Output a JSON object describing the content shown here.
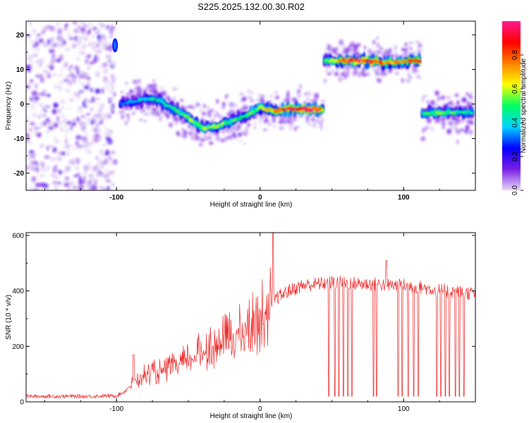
{
  "title": "S225.2025.132.00.30.R02",
  "chart_data": [
    {
      "type": "heatmap",
      "xlabel": "Height of straight line (km)",
      "ylabel": "Frequency (Hz)",
      "xlim": [
        -163,
        150
      ],
      "ylim": [
        -25,
        24
      ],
      "x_ticks": [
        -100,
        0,
        100
      ],
      "y_ticks": [
        20,
        10,
        0,
        -10,
        -20
      ],
      "colorbar": {
        "label": "Normalized spectral amplitude",
        "range": [
          0,
          1
        ],
        "ticks": [
          0,
          0.2,
          0.4,
          0.6,
          0.8
        ],
        "tick_labels": [
          "0.0",
          "0.2",
          "0.4",
          "0.6",
          "0.8"
        ],
        "colormap": [
          "#e6d9f5",
          "#7a1ee6",
          "#0000ff",
          "#00d4ff",
          "#00ff60",
          "#ffff00",
          "#ff8000",
          "#ff0000",
          "#ff1a90"
        ]
      },
      "noise_region": {
        "x": [
          -163,
          -101
        ],
        "frequency": [
          -25,
          24
        ]
      },
      "ridges": [
        {
          "x": [
            -97,
            -80,
            -70,
            -60,
            -50,
            -40,
            -30,
            -20,
            -10,
            0,
            10,
            20,
            30,
            40,
            44
          ],
          "frequency": [
            0,
            1.5,
            1.0,
            -1.5,
            -4,
            -7,
            -6.5,
            -5,
            -3.5,
            -1,
            -2,
            -1.5,
            -1.5,
            -1.5,
            -1.5
          ],
          "amplitude": [
            0.3,
            0.4,
            0.45,
            0.45,
            0.55,
            0.55,
            0.6,
            0.5,
            0.45,
            0.6,
            0.75,
            0.9,
            0.95,
            0.9,
            0.7
          ]
        },
        {
          "x": [
            45,
            55,
            65,
            75,
            85,
            95,
            105,
            112
          ],
          "frequency": [
            12.5,
            12.5,
            12.7,
            12.5,
            12,
            12,
            12.5,
            12.7
          ],
          "amplitude": [
            0.45,
            0.7,
            0.9,
            0.85,
            0.8,
            0.7,
            0.8,
            0.9
          ]
        },
        {
          "x": [
            113,
            120,
            130,
            140,
            148
          ],
          "frequency": [
            -2.5,
            -2.5,
            -2.5,
            -2.5,
            -2.5
          ],
          "amplitude": [
            0.45,
            0.5,
            0.5,
            0.45,
            0.45
          ]
        }
      ],
      "spikes": [
        {
          "x": -101,
          "frequency": 17
        }
      ]
    },
    {
      "type": "line",
      "xlabel": "Height of straight line (km)",
      "ylabel": "SNR (10 * v/v)",
      "xlim": [
        -163,
        150
      ],
      "ylim": [
        0,
        610
      ],
      "x_ticks": [
        -100,
        0,
        100
      ],
      "y_ticks": [
        0,
        200,
        400,
        600
      ],
      "color": "#ee2020",
      "series": [
        {
          "x": [
            -163,
            -140,
            -120,
            -100,
            -95,
            -90,
            -85,
            -80,
            -70,
            -60,
            -50,
            -40,
            -30,
            -20,
            -10,
            0,
            5,
            10,
            15,
            20,
            25,
            30,
            40,
            50,
            60,
            70,
            80,
            90,
            100,
            110,
            120,
            130,
            140,
            150
          ],
          "values": [
            20,
            20,
            20,
            22,
            35,
            60,
            80,
            95,
            105,
            120,
            145,
            175,
            200,
            225,
            250,
            290,
            330,
            370,
            385,
            400,
            410,
            420,
            425,
            430,
            430,
            425,
            425,
            420,
            420,
            415,
            405,
            400,
            395,
            390
          ]
        }
      ],
      "peaks": [
        {
          "x": 9,
          "value": 610
        },
        {
          "x": 88,
          "value": 510
        },
        {
          "x": -88,
          "value": 170
        }
      ],
      "dropouts_x": [
        48,
        52,
        55,
        58,
        61,
        64,
        79,
        81,
        96,
        99,
        103,
        107,
        110,
        123,
        126,
        129,
        132,
        136,
        139,
        142
      ]
    }
  ]
}
